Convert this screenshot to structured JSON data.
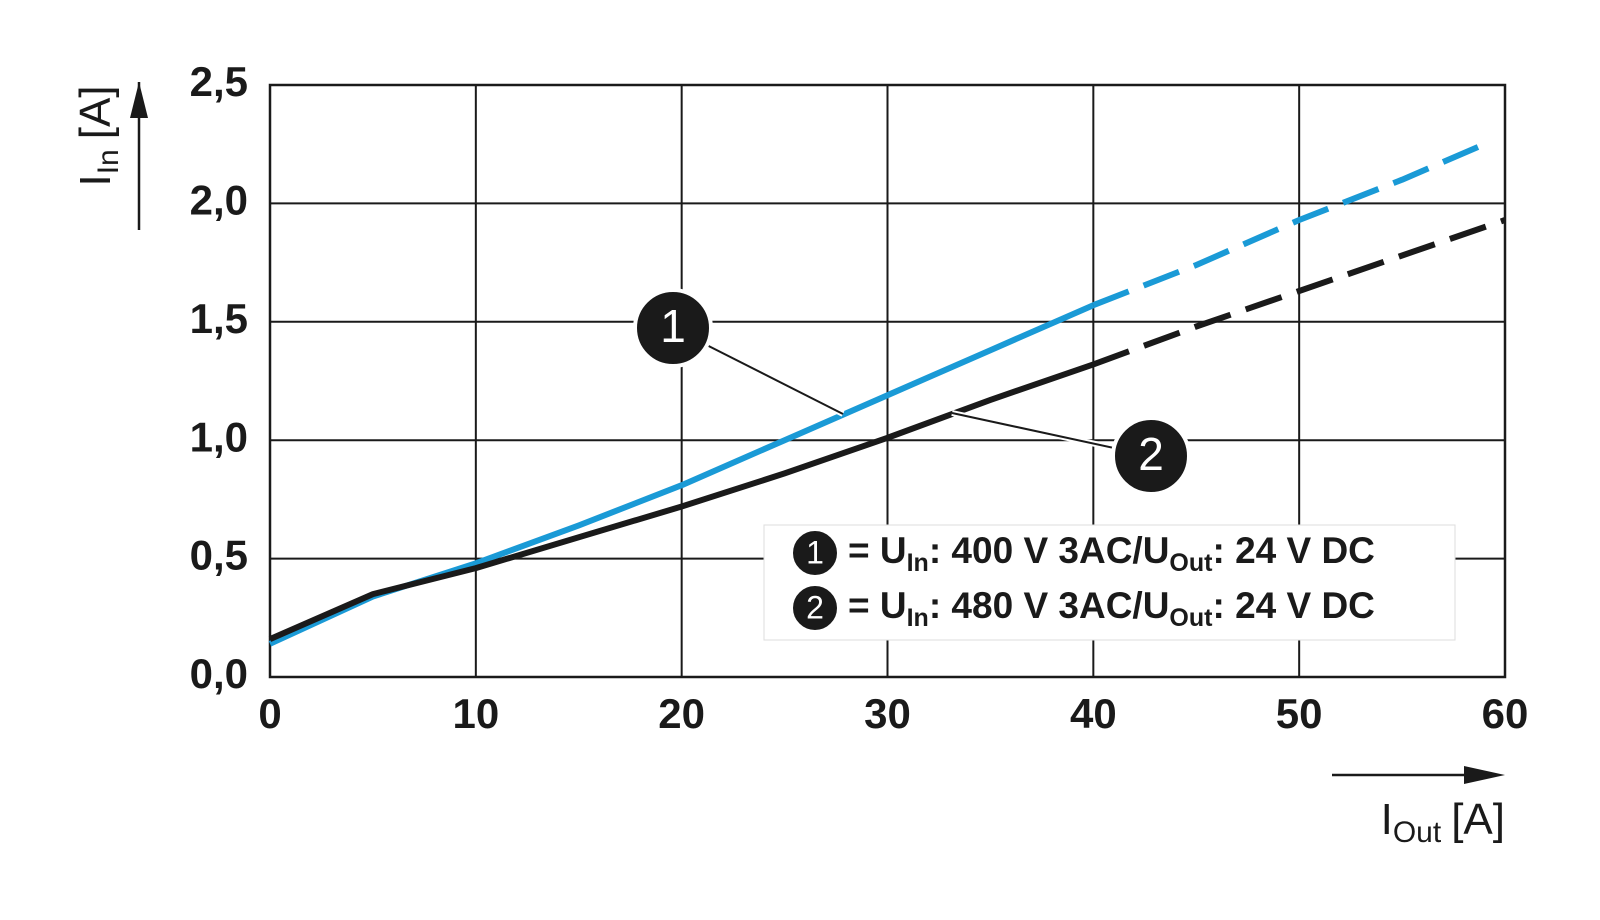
{
  "chart_data": {
    "type": "line",
    "y_label": {
      "main": "I",
      "sub": "In",
      "unit": "[A]"
    },
    "x_label": {
      "main": "I",
      "sub": "Out",
      "unit": "[A]"
    },
    "xlim": [
      0,
      60
    ],
    "xticks": [
      0,
      10,
      20,
      30,
      40,
      50,
      60
    ],
    "ylim": [
      0,
      2.5
    ],
    "yticks": [
      {
        "value": 0,
        "label": "0,0"
      },
      {
        "value": 0.5,
        "label": "0,5"
      },
      {
        "value": 1,
        "label": "1,0"
      },
      {
        "value": 1.5,
        "label": "1,5"
      },
      {
        "value": 2,
        "label": "2,0"
      },
      {
        "value": 2.5,
        "label": "2,5"
      }
    ],
    "grid": true,
    "series": [
      {
        "marker": "1",
        "label_parts": [
          "= U",
          "In",
          ": 400 V 3AC/U",
          "Out",
          ": 24 V DC"
        ],
        "color": "#1a9ad6",
        "solid_until": 40,
        "x": [
          0,
          5,
          10,
          15,
          20,
          25,
          30,
          35,
          40,
          45,
          50,
          55,
          59
        ],
        "values": [
          0.14,
          0.34,
          0.48,
          0.64,
          0.81,
          1.0,
          1.19,
          1.38,
          1.57,
          1.74,
          1.93,
          2.1,
          2.25
        ]
      },
      {
        "marker": "2",
        "label_parts": [
          "= U",
          "In",
          ": 480 V 3AC/U",
          "Out",
          ": 24 V DC"
        ],
        "color": "#1a1a1a",
        "solid_until": 40,
        "x": [
          0,
          5,
          10,
          15,
          20,
          25,
          30,
          35,
          40,
          45,
          50,
          55,
          60
        ],
        "values": [
          0.16,
          0.35,
          0.46,
          0.59,
          0.72,
          0.86,
          1.01,
          1.17,
          1.32,
          1.48,
          1.63,
          1.78,
          1.93
        ]
      }
    ]
  }
}
